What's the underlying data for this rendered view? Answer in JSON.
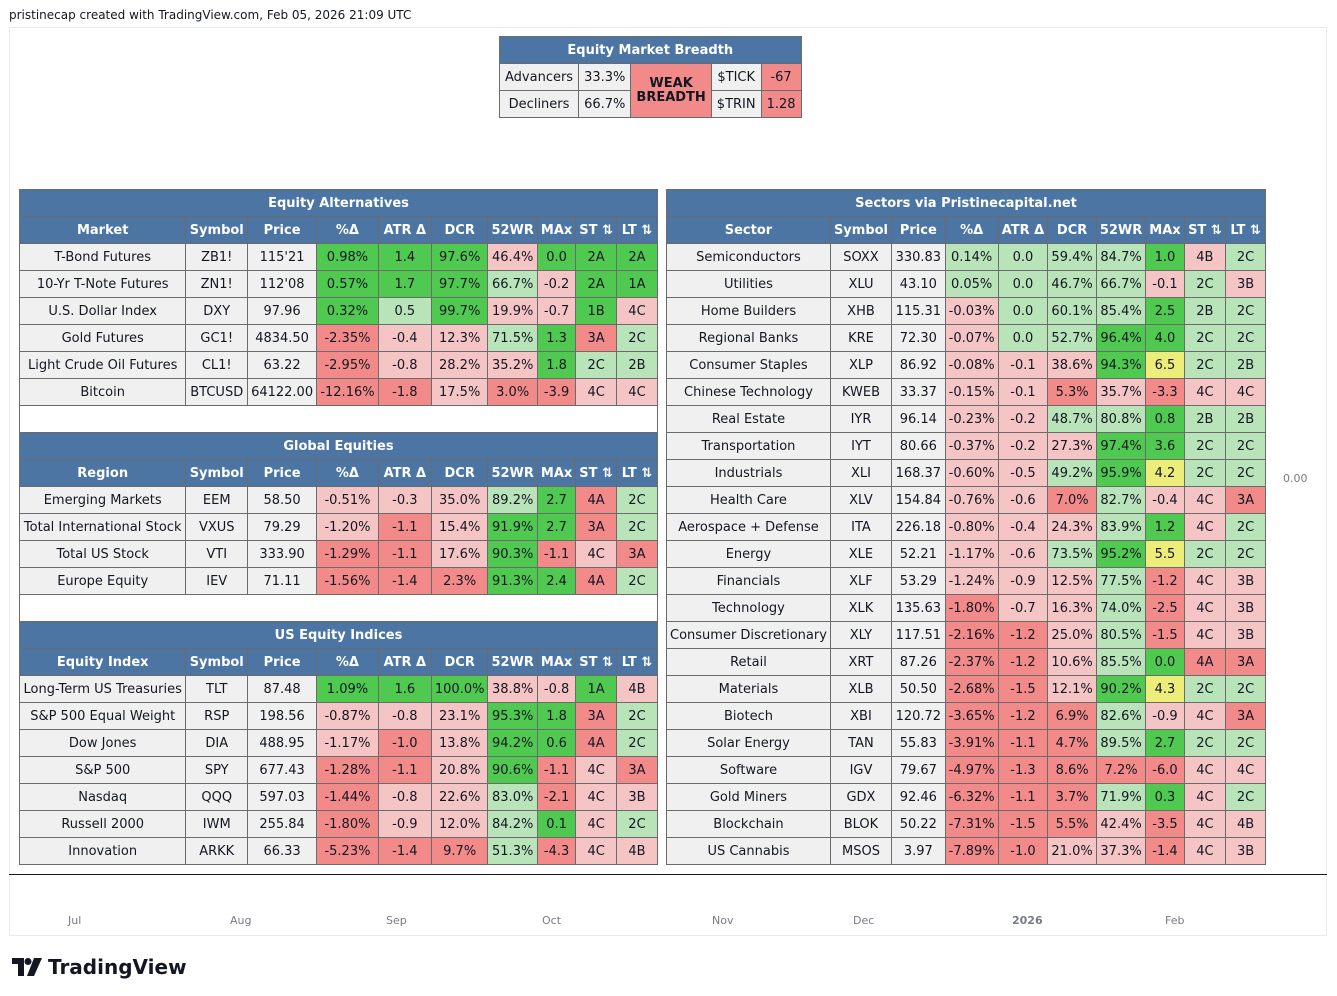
{
  "header": {
    "caption": "pristinecap created with TradingView.com, Feb 05, 2026 21:09 UTC"
  },
  "breadth": {
    "title": "Equity Market Breadth",
    "rows": [
      {
        "label": "Advancers",
        "value": "33.3%",
        "k": "$TICK",
        "v": "-67"
      },
      {
        "label": "Decliners",
        "value": "66.7%",
        "k": "$TRIN",
        "v": "1.28"
      }
    ],
    "status": "WEAK BREADTH"
  },
  "headers_market": [
    "Market",
    "Symbol",
    "Price",
    "%Δ",
    "ATR Δ",
    "DCR",
    "52WR",
    "MAx",
    "ST ⇅",
    "LT ⇅"
  ],
  "headers_region": [
    "Region",
    "Symbol",
    "Price",
    "%Δ",
    "ATR Δ",
    "DCR",
    "52WR",
    "MAx",
    "ST ⇅",
    "LT ⇅"
  ],
  "headers_index": [
    "Equity Index",
    "Symbol",
    "Price",
    "%Δ",
    "ATR Δ",
    "DCR",
    "52WR",
    "MAx",
    "ST ⇅",
    "LT ⇅"
  ],
  "headers_sector": [
    "Sector",
    "Symbol",
    "Price",
    "%Δ",
    "ATR Δ",
    "DCR",
    "52WR",
    "MAx",
    "ST ⇅",
    "LT ⇅"
  ],
  "tables": {
    "alternatives": {
      "title": "Equity Alternatives",
      "rows": [
        [
          "T-Bond Futures",
          "ZB1!",
          "115'21",
          "0.98%",
          "1.4",
          "97.6%",
          "46.4%",
          "0.0",
          "2A",
          "2A"
        ],
        [
          "10-Yr T-Note Futures",
          "ZN1!",
          "112'08",
          "0.57%",
          "1.7",
          "97.7%",
          "66.7%",
          "-0.2",
          "2A",
          "1A"
        ],
        [
          "U.S. Dollar Index",
          "DXY",
          "97.96",
          "0.32%",
          "0.5",
          "99.7%",
          "19.9%",
          "-0.7",
          "1B",
          "4C"
        ],
        [
          "Gold Futures",
          "GC1!",
          "4834.50",
          "-2.35%",
          "-0.4",
          "12.3%",
          "71.5%",
          "1.3",
          "3A",
          "2C"
        ],
        [
          "Light Crude Oil Futures",
          "CL1!",
          "63.22",
          "-2.95%",
          "-0.8",
          "28.2%",
          "35.2%",
          "1.8",
          "2C",
          "2B"
        ],
        [
          "Bitcoin",
          "BTCUSD",
          "64122.00",
          "-12.16%",
          "-1.8",
          "17.5%",
          "3.0%",
          "-3.9",
          "4C",
          "4C"
        ]
      ]
    },
    "global": {
      "title": "Global Equities",
      "rows": [
        [
          "Emerging Markets",
          "EEM",
          "58.50",
          "-0.51%",
          "-0.3",
          "35.0%",
          "89.2%",
          "2.7",
          "4A",
          "2C"
        ],
        [
          "Total International Stock",
          "VXUS",
          "79.29",
          "-1.20%",
          "-1.1",
          "15.4%",
          "91.9%",
          "2.7",
          "3A",
          "2C"
        ],
        [
          "Total US Stock",
          "VTI",
          "333.90",
          "-1.29%",
          "-1.1",
          "17.6%",
          "90.3%",
          "-1.1",
          "4C",
          "3A"
        ],
        [
          "Europe Equity",
          "IEV",
          "71.11",
          "-1.56%",
          "-1.4",
          "2.3%",
          "91.3%",
          "2.4",
          "4A",
          "2C"
        ]
      ]
    },
    "indices": {
      "title": "US Equity Indices",
      "rows": [
        [
          "Long-Term US Treasuries",
          "TLT",
          "87.48",
          "1.09%",
          "1.6",
          "100.0%",
          "38.8%",
          "-0.8",
          "1A",
          "4B"
        ],
        [
          "S&P 500 Equal Weight",
          "RSP",
          "198.56",
          "-0.87%",
          "-0.8",
          "23.1%",
          "95.3%",
          "1.8",
          "3A",
          "2C"
        ],
        [
          "Dow Jones",
          "DIA",
          "488.95",
          "-1.17%",
          "-1.0",
          "13.8%",
          "94.2%",
          "0.6",
          "4A",
          "2C"
        ],
        [
          "S&P 500",
          "SPY",
          "677.43",
          "-1.28%",
          "-1.1",
          "20.8%",
          "90.6%",
          "-1.1",
          "4C",
          "3A"
        ],
        [
          "Nasdaq",
          "QQQ",
          "597.03",
          "-1.44%",
          "-0.8",
          "22.6%",
          "83.0%",
          "-2.1",
          "4C",
          "3B"
        ],
        [
          "Russell 2000",
          "IWM",
          "255.84",
          "-1.80%",
          "-0.9",
          "12.0%",
          "84.2%",
          "0.1",
          "4C",
          "2C"
        ],
        [
          "Innovation",
          "ARKK",
          "66.33",
          "-5.23%",
          "-1.4",
          "9.7%",
          "51.3%",
          "-4.3",
          "4C",
          "4B"
        ]
      ]
    },
    "sectors": {
      "title": "Sectors via Pristinecapital.net",
      "rows": [
        [
          "Semiconductors",
          "SOXX",
          "330.83",
          "0.14%",
          "0.0",
          "59.4%",
          "84.7%",
          "1.0",
          "4B",
          "2C"
        ],
        [
          "Utilities",
          "XLU",
          "43.10",
          "0.05%",
          "0.0",
          "46.7%",
          "66.7%",
          "-0.1",
          "2C",
          "3B"
        ],
        [
          "Home Builders",
          "XHB",
          "115.31",
          "-0.03%",
          "0.0",
          "60.1%",
          "85.4%",
          "2.5",
          "2B",
          "2C"
        ],
        [
          "Regional Banks",
          "KRE",
          "72.30",
          "-0.07%",
          "0.0",
          "52.7%",
          "96.4%",
          "4.0",
          "2C",
          "2C"
        ],
        [
          "Consumer Staples",
          "XLP",
          "86.92",
          "-0.08%",
          "-0.1",
          "38.6%",
          "94.3%",
          "6.5",
          "2C",
          "2B"
        ],
        [
          "Chinese Technology",
          "KWEB",
          "33.37",
          "-0.15%",
          "-0.1",
          "5.3%",
          "35.7%",
          "-3.3",
          "4C",
          "4C"
        ],
        [
          "Real Estate",
          "IYR",
          "96.14",
          "-0.23%",
          "-0.2",
          "48.7%",
          "80.8%",
          "0.8",
          "2B",
          "2B"
        ],
        [
          "Transportation",
          "IYT",
          "80.66",
          "-0.37%",
          "-0.2",
          "27.3%",
          "97.4%",
          "3.6",
          "2C",
          "2C"
        ],
        [
          "Industrials",
          "XLI",
          "168.37",
          "-0.60%",
          "-0.5",
          "49.2%",
          "95.9%",
          "4.2",
          "2C",
          "2C"
        ],
        [
          "Health Care",
          "XLV",
          "154.84",
          "-0.76%",
          "-0.6",
          "7.0%",
          "82.7%",
          "-0.4",
          "4C",
          "3A"
        ],
        [
          "Aerospace + Defense",
          "ITA",
          "226.18",
          "-0.80%",
          "-0.4",
          "24.3%",
          "83.9%",
          "1.2",
          "4C",
          "2C"
        ],
        [
          "Energy",
          "XLE",
          "52.21",
          "-1.17%",
          "-0.6",
          "73.5%",
          "95.2%",
          "5.5",
          "2C",
          "2C"
        ],
        [
          "Financials",
          "XLF",
          "53.29",
          "-1.24%",
          "-0.9",
          "12.5%",
          "77.5%",
          "-1.2",
          "4C",
          "3B"
        ],
        [
          "Technology",
          "XLK",
          "135.63",
          "-1.80%",
          "-0.7",
          "16.3%",
          "74.0%",
          "-2.5",
          "4C",
          "3B"
        ],
        [
          "Consumer Discretionary",
          "XLY",
          "117.51",
          "-2.16%",
          "-1.2",
          "25.0%",
          "80.5%",
          "-1.5",
          "4C",
          "3B"
        ],
        [
          "Retail",
          "XRT",
          "87.26",
          "-2.37%",
          "-1.2",
          "10.6%",
          "85.5%",
          "0.0",
          "4A",
          "3A"
        ],
        [
          "Materials",
          "XLB",
          "50.50",
          "-2.68%",
          "-1.5",
          "12.1%",
          "90.2%",
          "4.3",
          "2C",
          "2C"
        ],
        [
          "Biotech",
          "XBI",
          "120.72",
          "-3.65%",
          "-1.2",
          "6.9%",
          "82.6%",
          "-0.9",
          "4C",
          "3A"
        ],
        [
          "Solar Energy",
          "TAN",
          "55.83",
          "-3.91%",
          "-1.1",
          "4.7%",
          "89.5%",
          "2.7",
          "2C",
          "2C"
        ],
        [
          "Software",
          "IGV",
          "79.67",
          "-4.97%",
          "-1.3",
          "8.6%",
          "7.2%",
          "-6.0",
          "4C",
          "4C"
        ],
        [
          "Gold Miners",
          "GDX",
          "92.46",
          "-6.32%",
          "-1.1",
          "3.7%",
          "71.9%",
          "0.3",
          "4C",
          "2C"
        ],
        [
          "Blockchain",
          "BLOK",
          "50.22",
          "-7.31%",
          "-1.5",
          "5.5%",
          "42.4%",
          "-3.5",
          "4C",
          "4B"
        ],
        [
          "US Cannabis",
          "MSOS",
          "3.97",
          "-7.89%",
          "-1.0",
          "21.0%",
          "37.3%",
          "-1.4",
          "4C",
          "3B"
        ]
      ]
    }
  },
  "axis": {
    "months": [
      "Jul",
      "Aug",
      "Sep",
      "Oct",
      "Nov",
      "Dec",
      "2026",
      "Feb"
    ],
    "price_label": "0.00"
  },
  "brand": {
    "name": "TradingView"
  },
  "colors": {
    "header": "#4c75a3",
    "strong_green": "#4fc94f",
    "light_green": "#b9e3b9",
    "strong_red": "#f28a8a",
    "light_red": "#f5c4c4",
    "yellow": "#eded7a"
  }
}
